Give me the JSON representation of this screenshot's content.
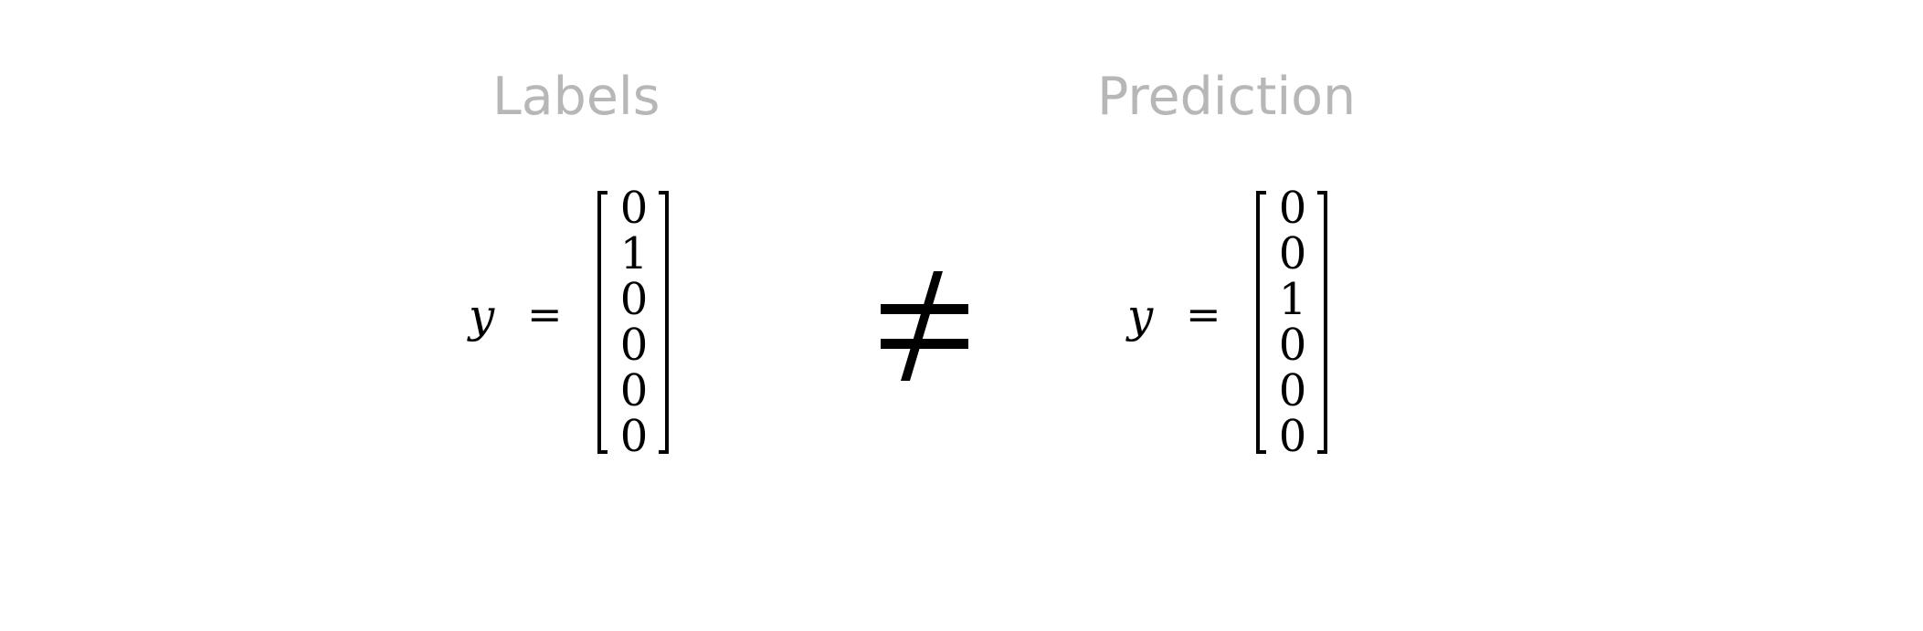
{
  "headings": {
    "labels": "Labels",
    "prediction": "Prediction"
  },
  "left_equation": {
    "variable": "y",
    "equals": "=",
    "vector": [
      "0",
      "1",
      "0",
      "0",
      "0",
      "0"
    ]
  },
  "relation": {
    "symbol_name": "not-equal-icon"
  },
  "right_equation": {
    "variable": "y",
    "equals": "=",
    "vector": [
      "0",
      "0",
      "1",
      "0",
      "0",
      "0"
    ]
  }
}
